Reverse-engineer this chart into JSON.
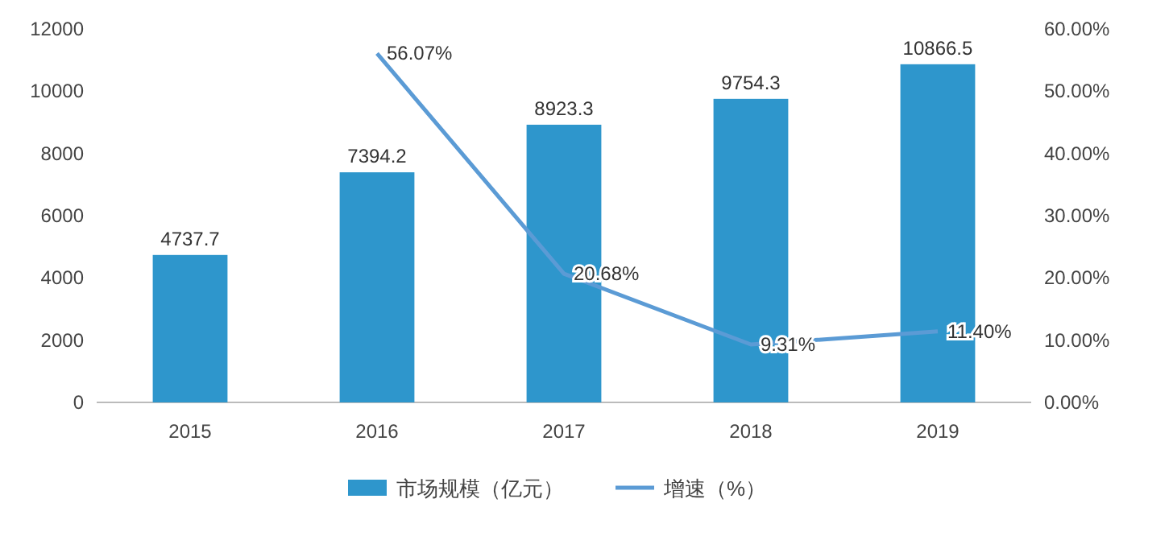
{
  "chart_data": {
    "type": "bar",
    "categories": [
      "2015",
      "2016",
      "2017",
      "2018",
      "2019"
    ],
    "series": [
      {
        "name": "市场规模（亿元）",
        "color": "#2e96cc",
        "values": [
          4737.7,
          7394.2,
          8923.3,
          9754.3,
          10866.5
        ],
        "value_labels": [
          "4737.7",
          "7394.2",
          "8923.3",
          "9754.3",
          "10866.5"
        ]
      },
      {
        "name": "增速（%）",
        "type": "line",
        "axis": "y2",
        "color": "#5b9bd5",
        "values": [
          null,
          56.07,
          20.68,
          9.31,
          11.4
        ],
        "value_labels": [
          null,
          "56.07%",
          "20.68%",
          "9.31%",
          "11.40%"
        ]
      }
    ],
    "ylim": [
      0,
      12000
    ],
    "yticks": [
      0,
      2000,
      4000,
      6000,
      8000,
      10000,
      12000
    ],
    "y2lim": [
      0,
      60
    ],
    "y2ticks": [
      {
        "value": 0,
        "label": "0.00%"
      },
      {
        "value": 10,
        "label": "10.00%"
      },
      {
        "value": 20,
        "label": "20.00%"
      },
      {
        "value": 30,
        "label": "30.00%"
      },
      {
        "value": 40,
        "label": "40.00%"
      },
      {
        "value": 50,
        "label": "50.00%"
      },
      {
        "value": 60,
        "label": "60.00%"
      }
    ],
    "legend": "bottom",
    "grid": false,
    "marker": "none"
  }
}
